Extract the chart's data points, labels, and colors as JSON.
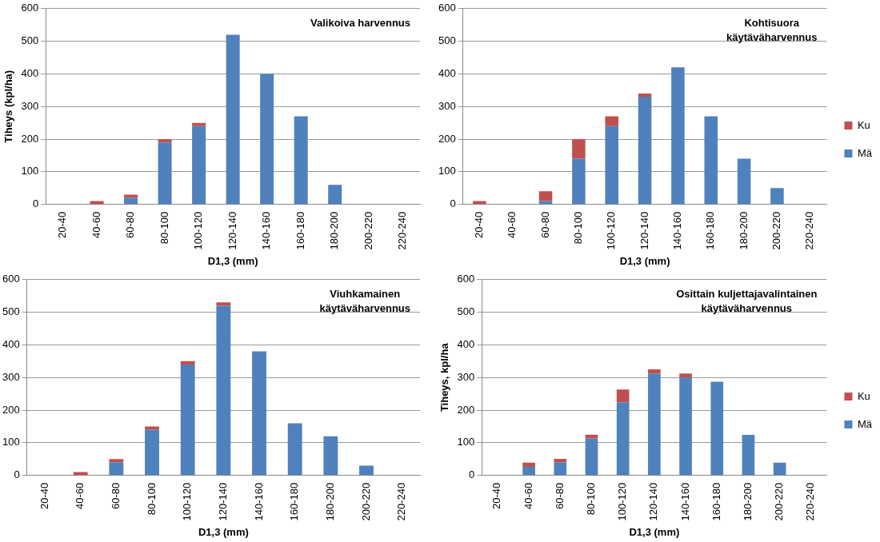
{
  "chart_data": [
    {
      "type": "bar",
      "title": "Valikoiva harvennus",
      "xlabel": "D1,3 (mm)",
      "ylabel": "Tiheys (kpl/ha)",
      "categories": [
        "20-40",
        "40-60",
        "60-80",
        "80-100",
        "100-120",
        "120-140",
        "140-160",
        "160-180",
        "180-200",
        "200-220",
        "220-240"
      ],
      "stacked": true,
      "ylim": [
        0,
        600
      ],
      "yticks": [
        0,
        100,
        200,
        300,
        400,
        500,
        600
      ],
      "grid": "y",
      "legend": false,
      "series": [
        {
          "color": "#4f81bd",
          "values": [
            0,
            0,
            20,
            190,
            240,
            520,
            400,
            270,
            60,
            0,
            0
          ]
        },
        {
          "color": "#c0504d",
          "values": [
            0,
            10,
            10,
            10,
            10,
            0,
            0,
            0,
            0,
            0,
            0
          ]
        }
      ]
    },
    {
      "type": "bar",
      "title": "Kohtisuora käytäväharvennus",
      "xlabel": "D1,3 (mm)",
      "categories": [
        "20-40",
        "40-60",
        "60-80",
        "80-100",
        "100-120",
        "120-140",
        "140-160",
        "160-180",
        "180-200",
        "200-220",
        "220-240"
      ],
      "stacked": true,
      "ylim": [
        0,
        600
      ],
      "yticks": [
        0,
        100,
        200,
        300,
        400,
        500,
        600
      ],
      "grid": "y",
      "legend": "right",
      "series": [
        {
          "name": "Mä",
          "color": "#4f81bd",
          "values": [
            0,
            0,
            10,
            140,
            240,
            330,
            420,
            270,
            140,
            50,
            0
          ]
        },
        {
          "name": "Ku",
          "color": "#c0504d",
          "values": [
            10,
            0,
            30,
            60,
            30,
            10,
            0,
            0,
            0,
            0,
            0
          ]
        }
      ]
    },
    {
      "type": "bar",
      "title": "Viuhkamainen käytäväharvennus",
      "xlabel": "D1,3 (mm)",
      "categories": [
        "20-40",
        "40-60",
        "60-80",
        "80-100",
        "100-120",
        "120-140",
        "140-160",
        "160-180",
        "180-200",
        "200-220",
        "220-240"
      ],
      "stacked": true,
      "ylim": [
        0,
        600
      ],
      "yticks": [
        0,
        100,
        200,
        300,
        400,
        500,
        600
      ],
      "grid": "y",
      "legend": false,
      "series": [
        {
          "color": "#4f81bd",
          "values": [
            0,
            0,
            40,
            140,
            340,
            520,
            380,
            160,
            120,
            30,
            0
          ]
        },
        {
          "color": "#c0504d",
          "values": [
            0,
            10,
            10,
            10,
            10,
            10,
            0,
            0,
            0,
            0,
            0
          ]
        }
      ]
    },
    {
      "type": "bar",
      "title": "Osittain kuljettajavalintainen käytäväharvennus",
      "xlabel": "D1,3 (mm)",
      "ylabel": "Tiheys, kpl/ha",
      "categories": [
        "20-40",
        "40-60",
        "60-80",
        "80-100",
        "100-120",
        "120-140",
        "140-160",
        "160-180",
        "180-200",
        "200-220",
        "220-240"
      ],
      "stacked": true,
      "ylim": [
        0,
        600
      ],
      "yticks": [
        0,
        100,
        200,
        300,
        400,
        500,
        600
      ],
      "grid": "y",
      "legend": "right",
      "series": [
        {
          "name": "Mä",
          "color": "#4f81bd",
          "values": [
            0,
            26,
            40,
            113,
            224,
            312,
            300,
            287,
            124,
            39,
            0
          ]
        },
        {
          "name": "Ku",
          "color": "#c0504d",
          "values": [
            0,
            13,
            11,
            12,
            39,
            13,
            12,
            0,
            0,
            0,
            0
          ]
        }
      ]
    }
  ]
}
